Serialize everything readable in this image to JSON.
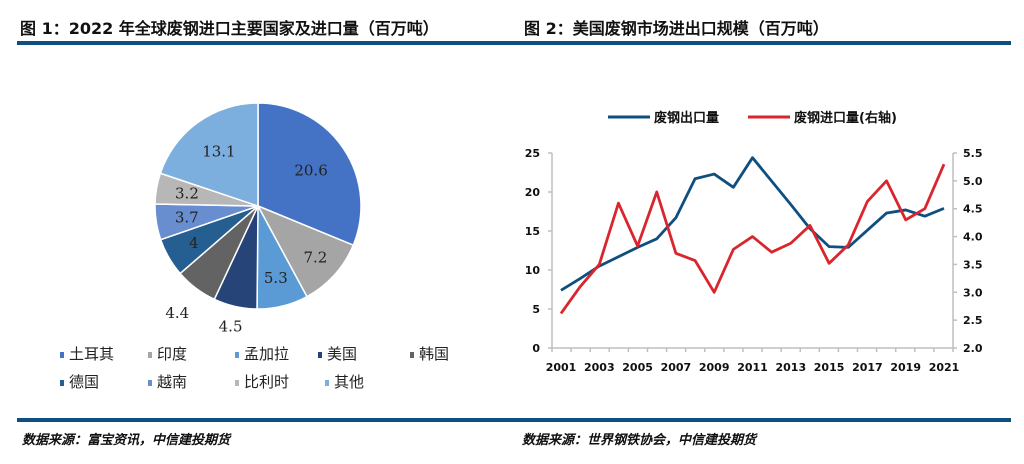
{
  "figure1": {
    "title": "图 1：2022 年全球废钢进口主要国家及进口量（百万吨）",
    "source": "数据来源：富宝资讯，中信建投期货"
  },
  "figure2": {
    "title": "图 2：美国废钢市场进出口规模（百万吨）",
    "source": "数据来源：世界钢铁协会，中信建投期货"
  },
  "chart_data": [
    {
      "type": "pie",
      "unit": "百万吨",
      "categories": [
        "土耳其",
        "印度",
        "孟加拉",
        "美国",
        "韩国",
        "德国",
        "越南",
        "比利时",
        "其他"
      ],
      "values": [
        20.6,
        7.2,
        5.3,
        4.5,
        4.4,
        4,
        3.7,
        3.2,
        13.1
      ],
      "labels": [
        "20.6",
        "7.2",
        "5.3",
        "4.5",
        "4.4",
        "4",
        "3.7",
        "3.2",
        "13.1"
      ],
      "colors": [
        "#4472c4",
        "#a5a5a5",
        "#5b9bd5",
        "#264478",
        "#636363",
        "#255e91",
        "#698ed0",
        "#b7b7b7",
        "#7cafdd"
      ],
      "legend": "bottom"
    },
    {
      "type": "line",
      "x": [
        "2001",
        "2002",
        "2003",
        "2004",
        "2005",
        "2006",
        "2007",
        "2008",
        "2009",
        "2010",
        "2011",
        "2012",
        "2013",
        "2014",
        "2015",
        "2016",
        "2017",
        "2018",
        "2019",
        "2020",
        "2021"
      ],
      "xticks": [
        "2001",
        "2003",
        "2005",
        "2007",
        "2009",
        "2011",
        "2013",
        "2015",
        "2017",
        "2019",
        "2021"
      ],
      "series": [
        {
          "name": "废钢出口量",
          "axis": "left",
          "color": "#0f4f80",
          "values": [
            7.4,
            8.9,
            10.5,
            11.7,
            12.9,
            14.0,
            16.7,
            21.7,
            22.3,
            20.6,
            24.4,
            21.4,
            18.4,
            15.3,
            13.0,
            12.9,
            15.1,
            17.3,
            17.7,
            16.9,
            17.9
          ]
        },
        {
          "name": "废钢进口量(右轴)",
          "axis": "right",
          "color": "#d9262e",
          "values": [
            2.62,
            3.1,
            3.5,
            4.6,
            3.83,
            4.8,
            3.7,
            3.57,
            3.0,
            3.77,
            4.0,
            3.72,
            3.88,
            4.2,
            3.52,
            3.85,
            4.63,
            5.0,
            4.3,
            4.5,
            5.3
          ]
        }
      ],
      "yleft": {
        "lim": [
          0,
          25
        ],
        "ticks": [
          "0",
          "5",
          "10",
          "15",
          "20",
          "25"
        ]
      },
      "yright": {
        "lim": [
          2.0,
          5.5
        ],
        "ticks": [
          "2.0",
          "2.5",
          "3.0",
          "3.5",
          "4.0",
          "4.5",
          "5.0",
          "5.5"
        ]
      },
      "legend": "top",
      "grid": false
    }
  ]
}
